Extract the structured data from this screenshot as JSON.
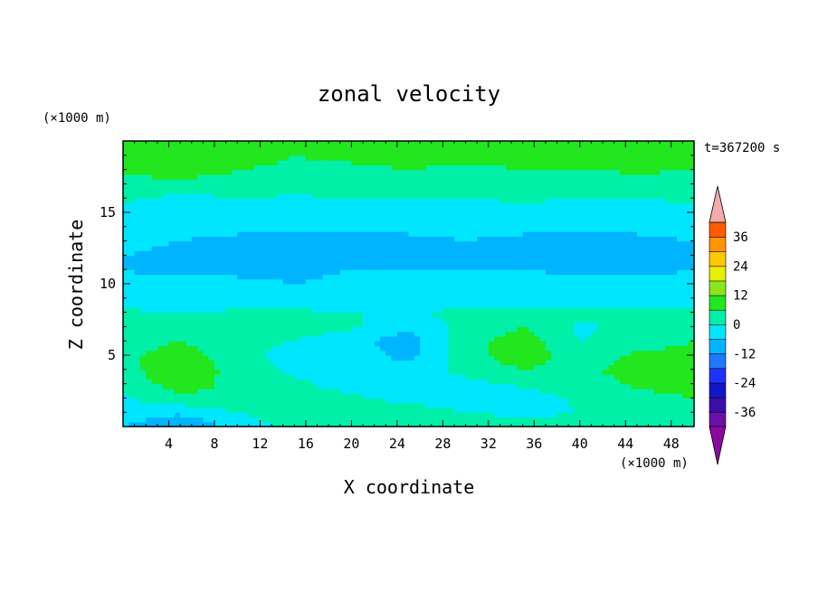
{
  "chart_data": {
    "type": "heatmap",
    "title": "zonal velocity",
    "xlabel": "X coordinate",
    "ylabel": "Z coordinate",
    "x_unit": "(×1000 m)",
    "y_unit": "(×1000 m)",
    "time_label": "t=367200 s",
    "xlim": [
      0,
      50
    ],
    "ylim": [
      0,
      20
    ],
    "x_ticks": [
      4,
      8,
      12,
      16,
      20,
      24,
      28,
      32,
      36,
      40,
      44,
      48
    ],
    "y_ticks": [
      5,
      10,
      15
    ],
    "colorbar": {
      "levels": [
        -42,
        -36,
        -30,
        -24,
        -18,
        -12,
        -6,
        0,
        6,
        12,
        18,
        24,
        30,
        36,
        42
      ],
      "labels": [
        36,
        24,
        12,
        0,
        -12,
        -24,
        -36
      ],
      "colors": [
        "#6b0fa8",
        "#3a0fa8",
        "#1414c8",
        "#1e32ff",
        "#1f78ff",
        "#00b4ff",
        "#00e6ff",
        "#00f0a8",
        "#22e61e",
        "#8ce61e",
        "#e6f000",
        "#ffc800",
        "#ff9600",
        "#ff5a00",
        "#e61414",
        "#f5aaaa"
      ],
      "below_color": "#8a0aa0",
      "above_color": "#f5aaaa"
    },
    "field_samples": {
      "x": [
        0,
        5,
        10,
        15,
        20,
        25,
        30,
        35,
        40,
        45,
        50
      ],
      "z": [
        0,
        1,
        2,
        3,
        4,
        5,
        6,
        7,
        8,
        9,
        10,
        11,
        12,
        13,
        14,
        15,
        16,
        17,
        18,
        19,
        20
      ],
      "u": [
        [
          -6,
          -12,
          -3,
          2,
          2,
          6,
          3,
          2,
          2,
          3,
          3
        ],
        [
          -3,
          -5,
          0,
          2,
          4,
          3,
          0,
          -1,
          0,
          2,
          4
        ],
        [
          -1,
          4,
          6,
          2,
          1,
          -2,
          -3,
          -3,
          1,
          4,
          6
        ],
        [
          2,
          9,
          4,
          1,
          -2,
          -3,
          -2,
          1,
          3,
          7,
          9
        ],
        [
          3,
          12,
          3,
          -1,
          0,
          -4,
          2,
          6,
          4,
          9,
          9
        ],
        [
          4,
          10,
          2,
          -2,
          -3,
          -8,
          3,
          10,
          2,
          7,
          8
        ],
        [
          3,
          6,
          1,
          0,
          -4,
          -9,
          4,
          9,
          0,
          3,
          6
        ],
        [
          2,
          3,
          1,
          3,
          1,
          -5,
          2,
          6,
          -1,
          2,
          3
        ],
        [
          1,
          0,
          1,
          1,
          0,
          0,
          1,
          1,
          1,
          1,
          1
        ],
        [
          -3,
          -4,
          -4,
          -4,
          -3,
          -3,
          -3,
          -3,
          -3,
          -4,
          -2
        ],
        [
          -5,
          -5,
          -5,
          -6,
          -5,
          -5,
          -4,
          -4,
          -4,
          -5,
          -4
        ],
        [
          -6,
          -7,
          -7,
          -7,
          -6,
          -6,
          -6,
          -6,
          -7,
          -7,
          -6
        ],
        [
          -6,
          -7,
          -8,
          -8,
          -8,
          -7,
          -7,
          -7,
          -8,
          -8,
          -7
        ],
        [
          -5,
          -6,
          -7,
          -7,
          -8,
          -7,
          -6,
          -7,
          -7,
          -7,
          -6
        ],
        [
          -4,
          -5,
          -5,
          -5,
          -5,
          -5,
          -5,
          -5,
          -5,
          -5,
          -4
        ],
        [
          -3,
          -3,
          -4,
          -3,
          -3,
          -3,
          -3,
          -3,
          -3,
          -3,
          -2
        ],
        [
          1,
          -1,
          0,
          -1,
          0,
          0,
          0,
          1,
          0,
          0,
          1
        ],
        [
          3,
          2,
          2,
          4,
          2,
          2,
          3,
          3,
          2,
          3,
          3
        ],
        [
          7,
          12,
          6,
          5,
          5,
          6,
          5,
          6,
          6,
          7,
          6
        ],
        [
          6,
          9,
          8,
          6,
          7,
          8,
          7,
          8,
          8,
          8,
          7
        ],
        [
          6,
          7,
          7,
          6,
          7,
          7,
          7,
          6,
          7,
          7,
          6
        ]
      ]
    }
  }
}
